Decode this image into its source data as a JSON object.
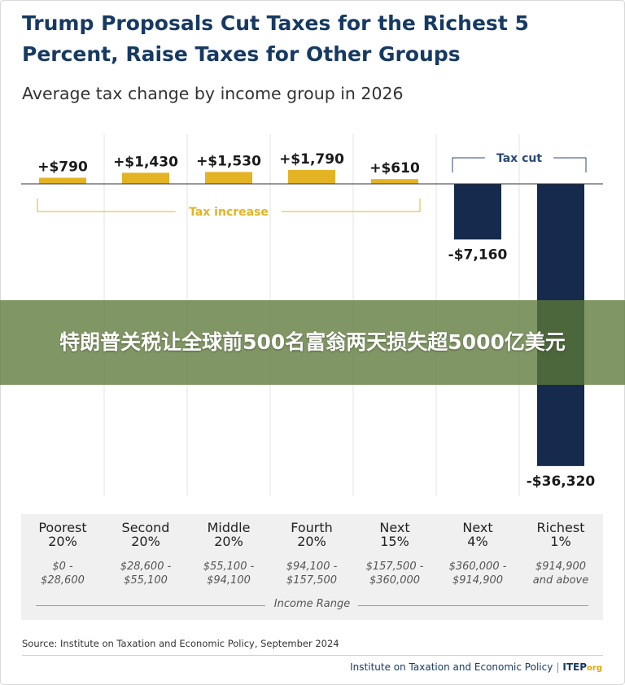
{
  "title": "Trump Proposals Cut Taxes for the Richest 5 Percent, Raise Taxes for Other Groups",
  "subtitle": "Average tax change by income group in 2026",
  "chart_data": {
    "type": "bar",
    "categories": [
      "Poorest 20%",
      "Second 20%",
      "Middle 20%",
      "Fourth 20%",
      "Next 15%",
      "Next 4%",
      "Richest 1%"
    ],
    "values": [
      790,
      1430,
      1530,
      1790,
      610,
      -7160,
      -36320
    ],
    "value_labels": [
      "+$790",
      "+$1,430",
      "+$1,530",
      "+$1,790",
      "+$610",
      "-$7,160",
      "-$36,320"
    ],
    "ylim": [
      -36320,
      1790
    ],
    "colors": {
      "increase": "#e4b324",
      "cut": "#152a4c"
    },
    "annotations": {
      "increase": "Tax increase",
      "cut": "Tax cut"
    }
  },
  "groups": [
    {
      "name": "Poorest\n20%",
      "range": "$0 -\n$28,600"
    },
    {
      "name": "Second\n20%",
      "range": "$28,600 -\n$55,100"
    },
    {
      "name": "Middle\n20%",
      "range": "$55,100 -\n$94,100"
    },
    {
      "name": "Fourth\n20%",
      "range": "$94,100 -\n$157,500"
    },
    {
      "name": "Next\n15%",
      "range": "$157,500 -\n$360,000"
    },
    {
      "name": "Next\n4%",
      "range": "$360,000 -\n$914,900"
    },
    {
      "name": "Richest\n1%",
      "range": "$914,900\nand above"
    }
  ],
  "income_range_label": "Income Range",
  "source": "Source: Institute on Taxation and Economic Policy, September 2024",
  "footer": {
    "org_name": "Institute on Taxation and Economic Policy",
    "separator": "|",
    "brand": "ITEP",
    "brand_suffix": "org"
  },
  "banner": {
    "text": "特朗普关税让全球前500名富翁两天损失超5000亿美元"
  }
}
